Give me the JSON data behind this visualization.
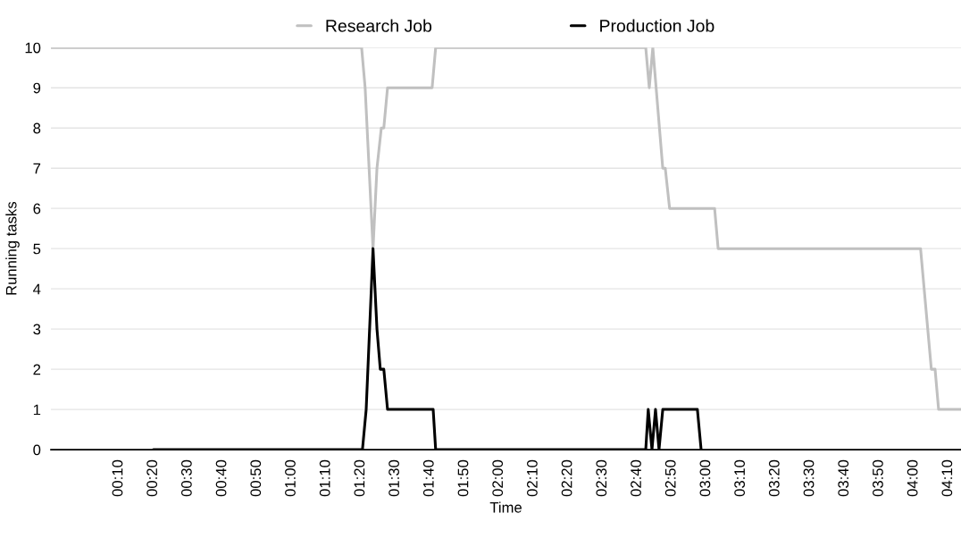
{
  "chart_data": {
    "type": "line",
    "xlabel": "Time",
    "ylabel": "Running tasks",
    "series": [
      {
        "name": "Research Job",
        "color": "#c0c0c0",
        "x": [
          -0.16,
          1.338,
          1.355,
          1.393,
          1.412,
          1.433,
          1.445,
          1.463,
          1.678,
          1.695,
          2.708,
          2.725,
          2.742,
          2.79,
          2.802,
          2.823,
          3.04,
          3.057,
          4.033,
          4.085,
          4.103,
          4.12,
          4.228
        ],
        "values": [
          10,
          10,
          9,
          5,
          7,
          8,
          8,
          9,
          9,
          10,
          10,
          9,
          10,
          7,
          7,
          6,
          6,
          5,
          5,
          2,
          2,
          1,
          1
        ]
      },
      {
        "name": "Production Job",
        "color": "#000000",
        "x": [
          0.335,
          1.342,
          1.36,
          1.393,
          1.412,
          1.428,
          1.445,
          1.463,
          1.683,
          1.695,
          2.708,
          2.72,
          2.738,
          2.755,
          2.772,
          2.79,
          2.957,
          2.975
        ],
        "values": [
          0,
          0,
          1,
          5,
          3,
          2,
          2,
          1,
          1,
          0,
          0,
          1,
          0,
          1,
          0,
          1,
          1,
          0
        ]
      }
    ],
    "xlim": [
      -0.16,
      4.228
    ],
    "xticks": [
      {
        "value": 0.1667,
        "label": "00:10"
      },
      {
        "value": 0.3333,
        "label": "00:20"
      },
      {
        "value": 0.5,
        "label": "00:30"
      },
      {
        "value": 0.6667,
        "label": "00:40"
      },
      {
        "value": 0.8333,
        "label": "00:50"
      },
      {
        "value": 1,
        "label": "01:00"
      },
      {
        "value": 1.1667,
        "label": "01:10"
      },
      {
        "value": 1.3333,
        "label": "01:20"
      },
      {
        "value": 1.5,
        "label": "01:30"
      },
      {
        "value": 1.6667,
        "label": "01:40"
      },
      {
        "value": 1.8333,
        "label": "01:50"
      },
      {
        "value": 2,
        "label": "02:00"
      },
      {
        "value": 2.1667,
        "label": "02:10"
      },
      {
        "value": 2.3333,
        "label": "02:20"
      },
      {
        "value": 2.5,
        "label": "02:30"
      },
      {
        "value": 2.6667,
        "label": "02:40"
      },
      {
        "value": 2.8333,
        "label": "02:50"
      },
      {
        "value": 3,
        "label": "03:00"
      },
      {
        "value": 3.1667,
        "label": "03:10"
      },
      {
        "value": 3.3333,
        "label": "03:20"
      },
      {
        "value": 3.5,
        "label": "03:30"
      },
      {
        "value": 3.6667,
        "label": "03:40"
      },
      {
        "value": 3.8333,
        "label": "03:50"
      },
      {
        "value": 4,
        "label": "04:00"
      },
      {
        "value": 4.1667,
        "label": "04:10"
      }
    ],
    "ylim": [
      0,
      10
    ],
    "yticks": [
      0,
      1,
      2,
      3,
      4,
      5,
      6,
      7,
      8,
      9,
      10
    ],
    "grid": "y",
    "legend": "top",
    "marker": "none",
    "line_style": "solid"
  }
}
